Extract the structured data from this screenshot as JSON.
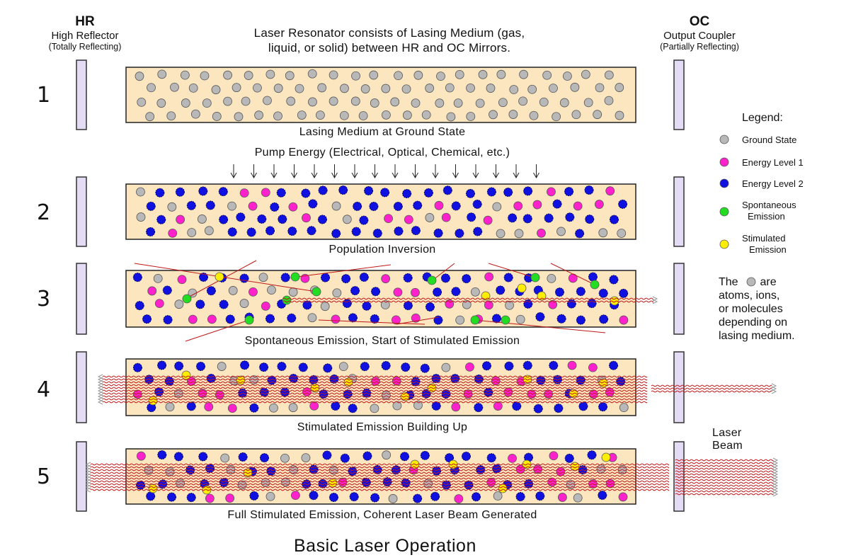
{
  "hr": {
    "title": "HR",
    "subtitle": "High Reflector",
    "note": "(Totally Reflecting)"
  },
  "oc": {
    "title": "OC",
    "subtitle": "Output Coupler",
    "note": "(Partially Reflecting)"
  },
  "description": {
    "line1": "Laser Resonator consists of Lasing Medium (gas,",
    "line2": "liquid, or solid) between HR and OC Mirrors."
  },
  "pump_label": "Pump Energy (Electrical, Optical, Chemical, etc.)",
  "stages": [
    {
      "number": "1",
      "caption": "Lasing Medium at Ground State"
    },
    {
      "number": "2",
      "caption": "Population Inversion"
    },
    {
      "number": "3",
      "caption": "Spontaneous Emission, Start of Stimulated Emission"
    },
    {
      "number": "4",
      "caption": "Stimulated Emission Building Up"
    },
    {
      "number": "5",
      "caption": "Full Stimulated Emission, Coherent Laser Beam Generated"
    }
  ],
  "legend": {
    "title": "Legend:",
    "items": [
      {
        "label_line1": "Ground State",
        "label_line2": "",
        "color": "#b8b8b8"
      },
      {
        "label_line1": "Energy Level 1",
        "label_line2": "",
        "color": "#ff22cc"
      },
      {
        "label_line1": "Energy Level 2",
        "label_line2": "",
        "color": "#1010e0"
      },
      {
        "label_line1": "Spontaneous",
        "label_line2": "Emission",
        "color": "#22dd22"
      },
      {
        "label_line1": "Stimulated",
        "label_line2": "Emission",
        "color": "#ffee00"
      }
    ]
  },
  "note": {
    "line1_pre": "The",
    "line1_post": "are",
    "line2": "atoms, ions,",
    "line3": "or molecules",
    "line4": "depending on",
    "line5": "lasing medium."
  },
  "beam_label": {
    "line1": "Laser",
    "line2": "Beam"
  },
  "footer_title": "Basic Laser Operation",
  "colors": {
    "medium": "#fbe6c0",
    "mirror": "#e4dcf4",
    "beam": "#c01818"
  }
}
